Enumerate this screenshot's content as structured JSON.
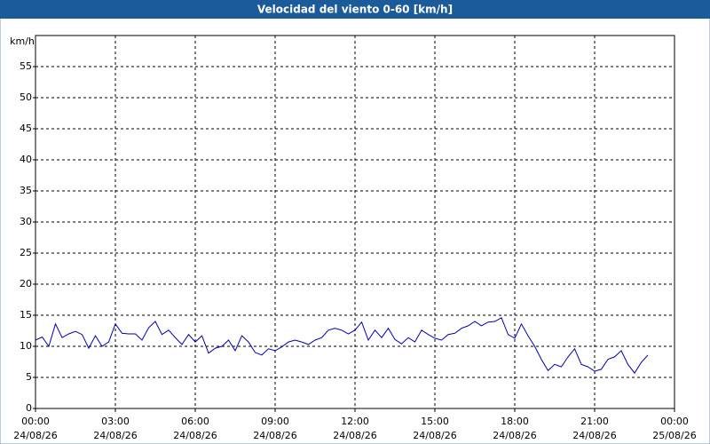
{
  "chart_data": {
    "type": "line",
    "title": "Velocidad del viento 0-60 [km/h]",
    "y_label": "km/h",
    "x": [
      0,
      0.25,
      0.5,
      0.75,
      1,
      1.25,
      1.5,
      1.75,
      2,
      2.25,
      2.5,
      2.75,
      3,
      3.25,
      3.5,
      3.75,
      4,
      4.25,
      4.5,
      4.75,
      5,
      5.25,
      5.5,
      5.75,
      6,
      6.25,
      6.5,
      6.75,
      7,
      7.25,
      7.5,
      7.75,
      8,
      8.25,
      8.5,
      8.75,
      9,
      9.25,
      9.5,
      9.75,
      10,
      10.25,
      10.5,
      10.75,
      11,
      11.25,
      11.5,
      11.75,
      12,
      12.25,
      12.5,
      12.75,
      13,
      13.25,
      13.5,
      13.75,
      14,
      14.25,
      14.5,
      14.75,
      15,
      15.25,
      15.5,
      15.75,
      16,
      16.25,
      16.5,
      16.75,
      17,
      17.25,
      17.5,
      17.75,
      18,
      18.25,
      18.5,
      18.75,
      19,
      19.25,
      19.5,
      19.75,
      20,
      20.25,
      20.5,
      20.75,
      21,
      21.25,
      21.5,
      21.75,
      22,
      22.25,
      22.5,
      22.75,
      23
    ],
    "series": [
      {
        "name": "Velocidad del viento",
        "color": "#0000b4",
        "values": [
          11,
          11.5,
          10,
          13.6,
          11.4,
          12,
          12.4,
          11.9,
          9.7,
          11.7,
          10,
          10.7,
          13.6,
          12.1,
          12,
          12,
          11,
          13,
          14,
          11.9,
          12.6,
          11.4,
          10.3,
          11.9,
          10.7,
          11.7,
          8.9,
          9.7,
          10,
          11,
          9.3,
          11.7,
          10.7,
          9,
          8.6,
          9.6,
          9.3,
          9.9,
          10.7,
          11,
          10.7,
          10.3,
          11,
          11.4,
          12.6,
          12.9,
          12.6,
          12,
          12.6,
          13.9,
          11,
          12.6,
          11.4,
          12.9,
          11.1,
          10.4,
          11.4,
          10.7,
          12.6,
          11.9,
          11.3,
          11,
          11.9,
          12.1,
          12.9,
          13.3,
          14,
          13.3,
          13.9,
          14,
          14.6,
          11.9,
          11.3,
          13.6,
          11.7,
          10,
          7.9,
          6.1,
          7.1,
          6.7,
          8.3,
          9.6,
          7.1,
          6.7,
          6,
          6.3,
          7.9,
          8.3,
          9.3,
          7.1,
          5.7,
          7.4,
          8.6
        ]
      }
    ],
    "xlim": [
      0,
      24
    ],
    "xticks": [
      {
        "value": 0,
        "label": "00:00",
        "date": "24/08/26"
      },
      {
        "value": 3,
        "label": "03:00",
        "date": "24/08/26"
      },
      {
        "value": 6,
        "label": "06:00",
        "date": "24/08/26"
      },
      {
        "value": 9,
        "label": "09:00",
        "date": "24/08/26"
      },
      {
        "value": 12,
        "label": "12:00",
        "date": "24/08/26"
      },
      {
        "value": 15,
        "label": "15:00",
        "date": "24/08/26"
      },
      {
        "value": 18,
        "label": "18:00",
        "date": "24/08/26"
      },
      {
        "value": 21,
        "label": "21:00",
        "date": "24/08/26"
      },
      {
        "value": 24,
        "label": "00:00",
        "date": "25/08/26"
      }
    ],
    "ylim": [
      0,
      60
    ],
    "yticks": [
      0,
      5,
      10,
      15,
      20,
      25,
      30,
      35,
      40,
      45,
      50,
      55
    ],
    "grid": true
  }
}
